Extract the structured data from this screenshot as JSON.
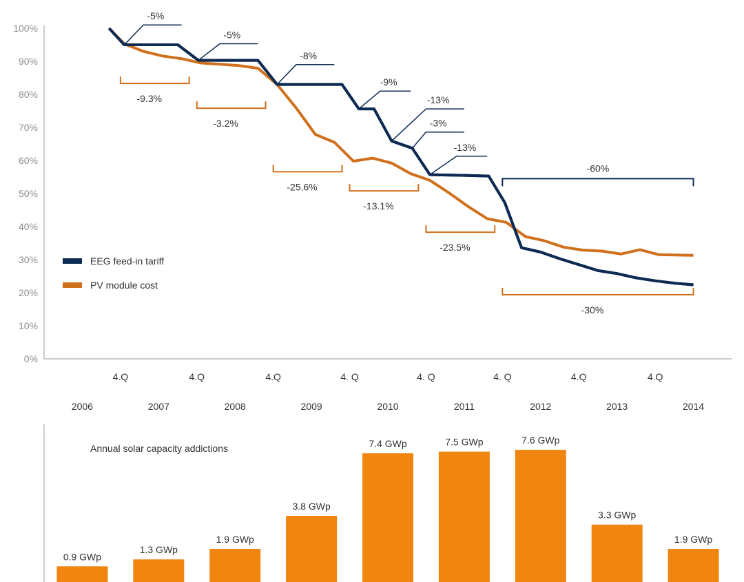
{
  "chart_data": [
    {
      "type": "line",
      "yticks": [
        "0%",
        "10%",
        "20%",
        "30%",
        "40%",
        "50%",
        "60%",
        "70%",
        "80%",
        "90%",
        "100%"
      ],
      "ylim": [
        0,
        100
      ],
      "xlim": [
        2006,
        2015
      ],
      "quarter_labels": [
        "4.Q",
        "4.Q",
        "4.Q",
        "4. Q",
        "4. Q",
        "4. Q",
        "4.Q",
        "4.Q"
      ],
      "quarter_positions": [
        2007,
        2008,
        2009,
        2010,
        2011,
        2012,
        2013,
        2014
      ],
      "year_labels": [
        "2006",
        "2007",
        "2008",
        "2009",
        "2010",
        "2011",
        "2012",
        "2013",
        "2014"
      ],
      "year_positions": [
        2006.5,
        2007.5,
        2008.5,
        2009.5,
        2010.5,
        2011.5,
        2012.5,
        2013.5,
        2014.5
      ],
      "legend_position": "left-middle",
      "series": [
        {
          "name": "EEG feed-in tariff",
          "color": "#0c2a52",
          "points": [
            [
              2006.85,
              100
            ],
            [
              2007.05,
              95
            ],
            [
              2007.75,
              95
            ],
            [
              2008.02,
              90.3
            ],
            [
              2008.8,
              90.3
            ],
            [
              2009.05,
              83
            ],
            [
              2009.9,
              83
            ],
            [
              2010.12,
              75.6
            ],
            [
              2010.32,
              75.6
            ],
            [
              2010.55,
              65.9
            ],
            [
              2010.82,
              63.7
            ],
            [
              2011.05,
              55.7
            ],
            [
              2011.5,
              55.5
            ],
            [
              2011.82,
              55.3
            ],
            [
              2012.03,
              47.3
            ],
            [
              2012.25,
              33.6
            ],
            [
              2012.5,
              32.3
            ],
            [
              2012.75,
              30.3
            ],
            [
              2013.0,
              28.5
            ],
            [
              2013.25,
              26.7
            ],
            [
              2013.5,
              25.8
            ],
            [
              2013.75,
              24.5
            ],
            [
              2014.0,
              23.6
            ],
            [
              2014.25,
              22.9
            ],
            [
              2014.5,
              22.4
            ]
          ]
        },
        {
          "name": "PV module cost",
          "color": "#d0701c",
          "points": [
            [
              2006.85,
              100
            ],
            [
              2007.05,
              95.3
            ],
            [
              2007.3,
              93
            ],
            [
              2007.55,
              91.6
            ],
            [
              2007.8,
              90.8
            ],
            [
              2008.05,
              89.5
            ],
            [
              2008.3,
              89.1
            ],
            [
              2008.55,
              88.7
            ],
            [
              2008.8,
              87.9
            ],
            [
              2009.05,
              83
            ],
            [
              2009.3,
              75.9
            ],
            [
              2009.55,
              67.9
            ],
            [
              2009.8,
              65.5
            ],
            [
              2010.05,
              59.8
            ],
            [
              2010.3,
              60.7
            ],
            [
              2010.55,
              59.2
            ],
            [
              2010.8,
              56
            ],
            [
              2011.05,
              54
            ],
            [
              2011.3,
              50.2
            ],
            [
              2011.55,
              46.1
            ],
            [
              2011.8,
              42.4
            ],
            [
              2012.05,
              41.3
            ],
            [
              2012.3,
              37
            ],
            [
              2012.55,
              35.7
            ],
            [
              2012.8,
              33.8
            ],
            [
              2013.05,
              32.9
            ],
            [
              2013.3,
              32.6
            ],
            [
              2013.55,
              31.7
            ],
            [
              2013.8,
              33
            ],
            [
              2014.05,
              31.5
            ],
            [
              2014.5,
              31.3
            ]
          ]
        }
      ],
      "tariff_cuts": [
        {
          "label": "-5%",
          "x": 2007.05,
          "y": 95,
          "lx": 2007.3,
          "ly": 101,
          "lx2": 2007.8
        },
        {
          "label": "-5%",
          "x": 2008.02,
          "y": 90.3,
          "lx": 2008.3,
          "ly": 95.3,
          "lx2": 2008.8
        },
        {
          "label": "-8%",
          "x": 2009.05,
          "y": 83,
          "lx": 2009.3,
          "ly": 89,
          "lx2": 2009.8
        },
        {
          "label": "-9%",
          "x": 2010.12,
          "y": 75.6,
          "lx": 2010.4,
          "ly": 81,
          "lx2": 2010.8
        },
        {
          "label": "-13%",
          "x": 2010.55,
          "y": 65.9,
          "lx": 2011.0,
          "ly": 75.6,
          "lx2": 2011.5
        },
        {
          "label": "-3%",
          "x": 2010.82,
          "y": 63.7,
          "lx": 2011.0,
          "ly": 68.6,
          "lx2": 2011.5
        },
        {
          "label": "-13%",
          "x": 2011.05,
          "y": 55.7,
          "lx": 2011.4,
          "ly": 61.3,
          "lx2": 2011.8
        }
      ],
      "tariff_bracket": {
        "label": "-60%",
        "x1": 2012.0,
        "x2": 2014.5,
        "y": 54.5
      },
      "module_brackets": [
        {
          "label": "-9.3%",
          "x1": 2007.0,
          "x2": 2007.9,
          "y": 83.3
        },
        {
          "label": "-3.2%",
          "x1": 2008.0,
          "x2": 2008.9,
          "y": 75.8
        },
        {
          "label": "-25.6%",
          "x1": 2009.0,
          "x2": 2009.9,
          "y": 56.6
        },
        {
          "label": "-13.1%",
          "x1": 2010.0,
          "x2": 2010.9,
          "y": 50.8
        },
        {
          "label": "-23.5%",
          "x1": 2011.0,
          "x2": 2011.9,
          "y": 38.3
        },
        {
          "label": "-30%",
          "x1": 2012.0,
          "x2": 2014.5,
          "y": 19.4
        }
      ]
    },
    {
      "type": "bar",
      "title": "Annual solar capacity addictions",
      "categories": [
        "2006",
        "2007",
        "2008",
        "2009",
        "2010",
        "2011",
        "2012",
        "2013",
        "2014"
      ],
      "values": [
        0.9,
        1.3,
        1.9,
        3.8,
        7.4,
        7.5,
        7.6,
        3.3,
        1.9
      ],
      "value_labels": [
        "0.9 GWp",
        "1.3 GWp",
        "1.9 GWp",
        "3.8 GWp",
        "7.4 GWp",
        "7.5 GWp",
        "7.6 GWp",
        "3.3 GWp",
        "1.9 GWp"
      ],
      "color": "#f0860f",
      "ylim": [
        0,
        8
      ]
    }
  ]
}
